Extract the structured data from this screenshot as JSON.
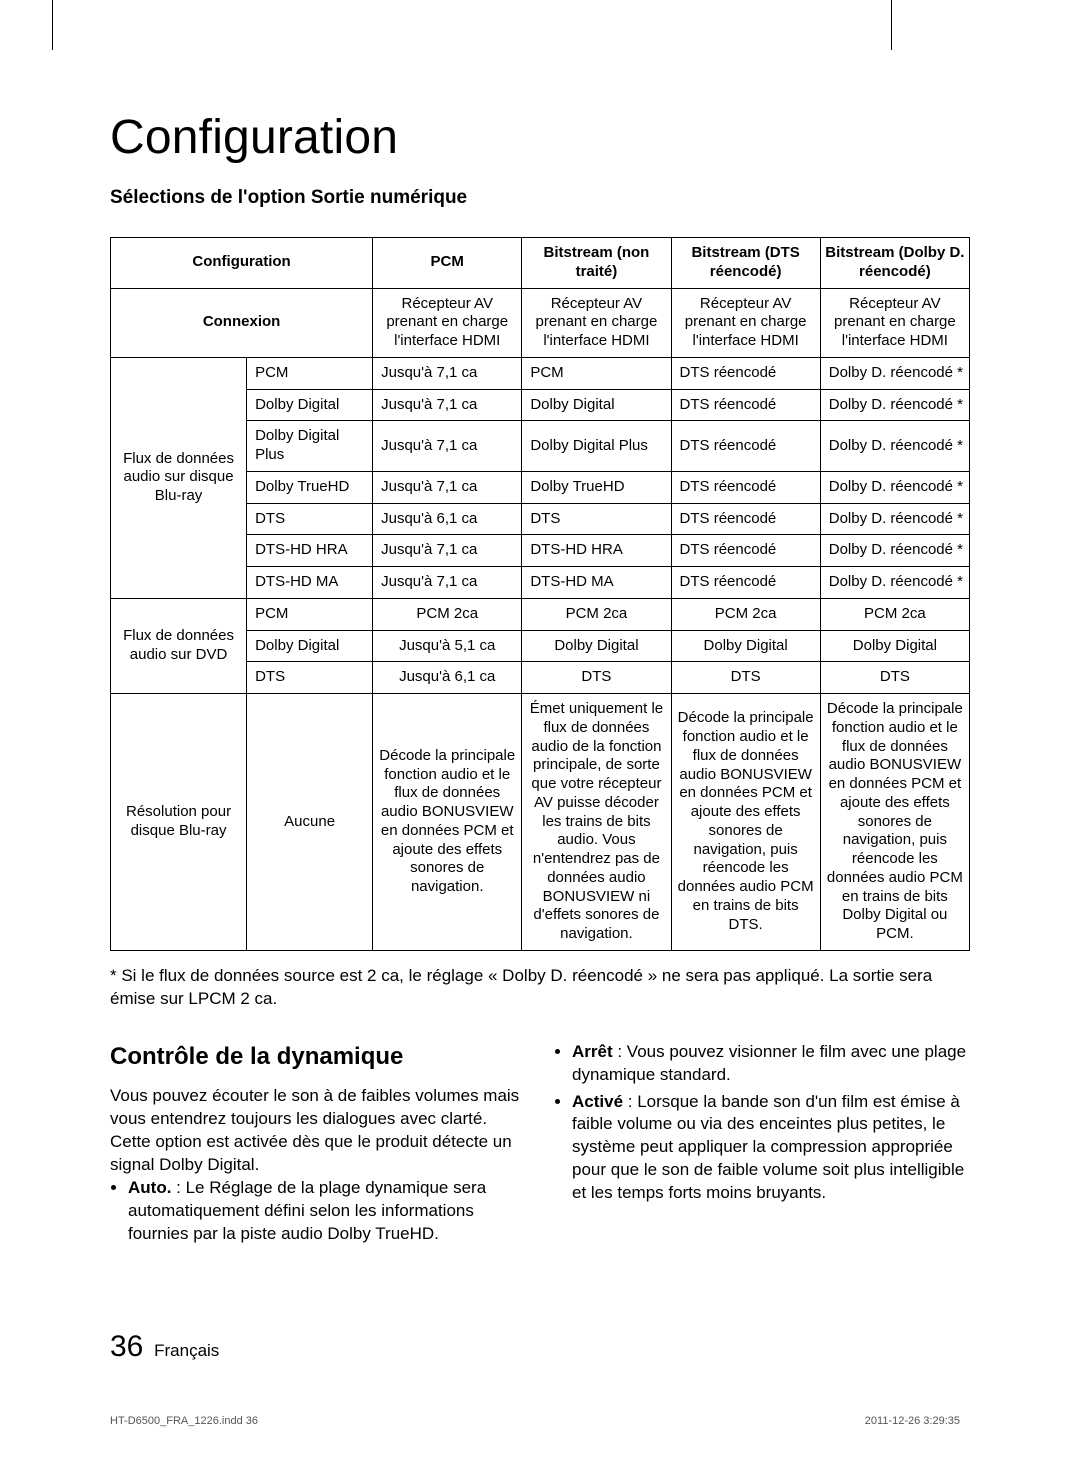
{
  "page": {
    "title": "Configuration",
    "subtitle": "Sélections de l'option Sortie numérique",
    "footnote": "* Si le flux de données source est 2 ca, le réglage « Dolby D. réencodé » ne sera pas appliqué. La sortie sera émise sur LPCM 2 ca.",
    "page_number": "36",
    "language": "Français",
    "print_file": "HT-D6500_FRA_1226.indd   36",
    "print_date": "2011-12-26    3:29:35"
  },
  "table": {
    "header": {
      "config": "Configuration",
      "pcm": "PCM",
      "bs_untreated": "Bitstream (non traité)",
      "bs_dts": "Bitstream (DTS réencodé)",
      "bs_dolby": "Bitstream (Dolby D. réencodé)"
    },
    "connection_row": {
      "label": "Connexion",
      "pcm": "Récepteur AV prenant en charge l'interface HDMI",
      "bs_untreated": "Récepteur AV prenant en charge l'interface HDMI",
      "bs_dts": "Récepteur AV prenant en charge l'interface HDMI",
      "bs_dolby": "Récepteur AV prenant en charge l'interface HDMI"
    },
    "group_bluray_label": "Flux de données audio sur disque Blu-ray",
    "group_bluray_rows": [
      {
        "fmt": "PCM",
        "pcm": "Jusqu'à 7,1 ca",
        "u": "PCM",
        "dts": "DTS réencodé",
        "dolby": "Dolby D. réencodé *"
      },
      {
        "fmt": "Dolby Digital",
        "pcm": "Jusqu'à 7,1 ca",
        "u": "Dolby Digital",
        "dts": "DTS réencodé",
        "dolby": "Dolby D. réencodé *"
      },
      {
        "fmt": "Dolby Digital Plus",
        "pcm": "Jusqu'à 7,1 ca",
        "u": "Dolby Digital Plus",
        "dts": "DTS réencodé",
        "dolby": "Dolby D. réencodé *"
      },
      {
        "fmt": "Dolby TrueHD",
        "pcm": "Jusqu'à 7,1 ca",
        "u": "Dolby TrueHD",
        "dts": "DTS réencodé",
        "dolby": "Dolby D. réencodé *"
      },
      {
        "fmt": "DTS",
        "pcm": "Jusqu'à 6,1 ca",
        "u": "DTS",
        "dts": "DTS réencodé",
        "dolby": "Dolby D. réencodé *"
      },
      {
        "fmt": "DTS-HD HRA",
        "pcm": "Jusqu'à 7,1 ca",
        "u": "DTS-HD HRA",
        "dts": "DTS réencodé",
        "dolby": "Dolby D. réencodé *"
      },
      {
        "fmt": "DTS-HD MA",
        "pcm": "Jusqu'à 7,1 ca",
        "u": "DTS-HD MA",
        "dts": "DTS réencodé",
        "dolby": "Dolby D. réencodé *"
      }
    ],
    "group_dvd_label": "Flux de données audio sur DVD",
    "group_dvd_rows": [
      {
        "fmt": "PCM",
        "pcm": "PCM 2ca",
        "u": "PCM 2ca",
        "dts": "PCM 2ca",
        "dolby": "PCM 2ca"
      },
      {
        "fmt": "Dolby Digital",
        "pcm": "Jusqu'à 5,1 ca",
        "u": "Dolby Digital",
        "dts": "Dolby Digital",
        "dolby": "Dolby Digital"
      },
      {
        "fmt": "DTS",
        "pcm": "Jusqu'à 6,1 ca",
        "u": "DTS",
        "dts": "DTS",
        "dolby": "DTS"
      }
    ],
    "resolution_row": {
      "label": "Résolution pour disque Blu-ray",
      "none": "Aucune",
      "pcm": "Décode la principale fonction audio et le flux de données audio BONUSVIEW en données PCM et ajoute des effets sonores de navigation.",
      "u": "Émet uniquement le flux de données audio de la fonction principale, de sorte que votre récepteur AV puisse décoder les trains de bits audio. Vous n'entendrez pas de données audio BONUSVIEW ni d'effets sonores de navigation.",
      "dts": "Décode la principale fonction audio et le flux de données audio BONUSVIEW en données PCM et ajoute des effets sonores de navigation, puis réencode les données audio PCM en trains de bits DTS.",
      "dolby": "Décode la principale fonction audio et le flux de données audio BONUSVIEW en données PCM et ajoute des effets sonores de navigation, puis réencode les données audio PCM en trains de bits Dolby Digital ou PCM."
    }
  },
  "dynamic": {
    "title": "Contrôle de la dynamique",
    "intro": "Vous pouvez écouter le son à de faibles volumes mais vous entendrez toujours les dialogues avec clarté. Cette option est activée dès que le produit détecte un signal Dolby Digital.",
    "auto_label": "Auto.",
    "auto_text": " : Le Réglage de la plage dynamique sera automatiquement défini selon les informations fournies par la piste audio Dolby TrueHD.",
    "off_label": "Arrêt",
    "off_text": " : Vous pouvez visionner le film avec une plage dynamique standard.",
    "on_label": "Activé",
    "on_text": " : Lorsque la bande son d'un film est émise à faible volume ou via des enceintes plus petites, le système peut appliquer la compression appropriée pour que le son de faible volume soit plus intelligible et les temps forts moins bruyants."
  },
  "style": {
    "col_widths": [
      "13.5%",
      "12.5%",
      "14.8%",
      "14.8%",
      "14.8%",
      "14.8%"
    ],
    "border_color": "#000000",
    "background_color": "#ffffff",
    "text_color": "#000000"
  }
}
